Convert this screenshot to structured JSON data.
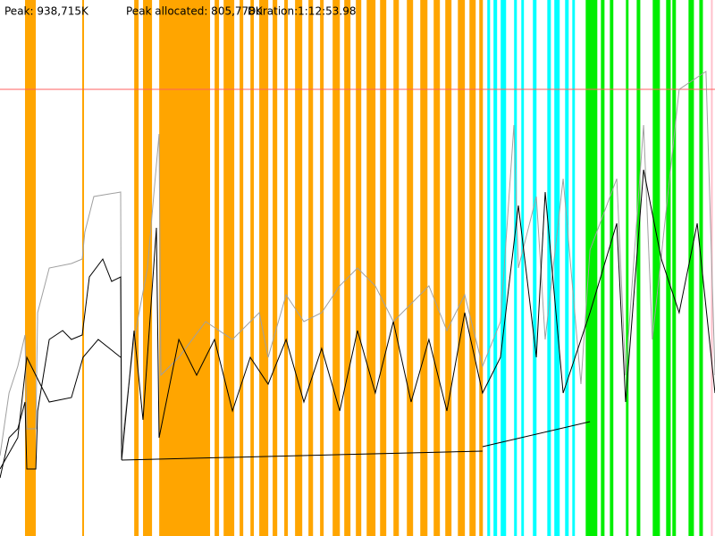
{
  "chart_data": {
    "type": "line",
    "header": [
      "Peak: 938,715K",
      "Peak allocated: 805,778K",
      "Duration:1:12:53.98"
    ],
    "xlim": [
      0,
      4374
    ],
    "ylim": [
      0,
      1083000
    ],
    "limit": {
      "value": 902500,
      "color": "#ff6060"
    },
    "bands": [
      {
        "color": "#ffa500",
        "ranges": [
          [
            153,
            219
          ],
          [
            503,
            514
          ],
          [
            821,
            848
          ],
          [
            875,
            930
          ],
          [
            974,
            1285
          ],
          [
            1313,
            1340
          ],
          [
            1368,
            1433
          ],
          [
            1466,
            1488
          ],
          [
            1532,
            1553
          ],
          [
            1586,
            1641
          ],
          [
            1668,
            1696
          ],
          [
            1739,
            1761
          ],
          [
            1805,
            1849
          ],
          [
            1887,
            1915
          ],
          [
            1958,
            1980
          ],
          [
            2035,
            2079
          ],
          [
            2106,
            2144
          ],
          [
            2177,
            2210
          ],
          [
            2243,
            2297
          ],
          [
            2325,
            2363
          ],
          [
            2407,
            2440
          ],
          [
            2489,
            2527
          ],
          [
            2571,
            2615
          ],
          [
            2653,
            2691
          ],
          [
            2724,
            2762
          ],
          [
            2801,
            2844
          ],
          [
            2872,
            2910
          ],
          [
            2932,
            2954
          ]
        ]
      },
      {
        "color": "#00ffff",
        "ranges": [
          [
            2981,
            2998
          ],
          [
            3019,
            3041
          ],
          [
            3063,
            3096
          ],
          [
            3145,
            3162
          ],
          [
            3189,
            3205
          ],
          [
            3260,
            3282
          ],
          [
            3348,
            3370
          ],
          [
            3391,
            3424
          ],
          [
            3457,
            3479
          ],
          [
            3501,
            3517
          ]
        ]
      },
      {
        "color": "#00ee00",
        "ranges": [
          [
            3583,
            3654
          ],
          [
            3676,
            3698
          ],
          [
            3731,
            3752
          ],
          [
            3829,
            3845
          ],
          [
            3895,
            3917
          ],
          [
            3993,
            4037
          ],
          [
            4075,
            4103
          ],
          [
            4113,
            4135
          ],
          [
            4212,
            4245
          ],
          [
            4278,
            4300
          ]
        ]
      },
      {
        "color": "#ffc0cb",
        "ranges": [
          [
            4349,
            4360
          ]
        ]
      }
    ],
    "series": [
      {
        "color": "#a0a0a0",
        "x": [
          0,
          55,
          109,
          153,
          164,
          219,
          230,
          301,
          437,
          503,
          519,
          574,
          738,
          744,
          820,
          902,
          940,
          973,
          984,
          1094,
          1258,
          1422,
          1586,
          1640,
          1750,
          1859,
          1968,
          2078,
          2187,
          2296,
          2406,
          2515,
          2624,
          2734,
          2843,
          2952,
          3062,
          3144,
          3171,
          3281,
          3335,
          3445,
          3554,
          3609,
          3773,
          3827,
          3937,
          3991,
          4155,
          4319,
          4374
        ],
        "values": [
          162450,
          288800,
          342950,
          406125,
          216600,
          216600,
          451250,
          541500,
          550525,
          559550,
          613700,
          685900,
          694925,
          180500,
          397100,
          541500,
          685900,
          812250,
          324900,
          361000,
          433200,
          397100,
          451250,
          361000,
          487350,
          433200,
          451250,
          505400,
          541500,
          505400,
          433200,
          469300,
          505400,
          415150,
          487350,
          342950,
          433200,
          830300,
          541500,
          685900,
          397100,
          722000,
          306850,
          577600,
          722000,
          324900,
          830300,
          397100,
          902500,
          938600,
          324900
        ]
      },
      {
        "color": "#000000",
        "x": [
          0,
          55,
          109,
          153,
          164,
          219,
          230,
          301,
          383,
          437,
          503,
          547,
          629,
          683,
          738,
          744,
          820,
          875,
          957,
          973,
          1094,
          1203,
          1312,
          1422,
          1531,
          1640,
          1750,
          1859,
          1968,
          2078,
          2187,
          2296,
          2406,
          2515,
          2624,
          2734,
          2843,
          2952,
          3062,
          3171,
          3281,
          3335,
          3445,
          3609,
          3773,
          3827,
          3937,
          4046,
          4155,
          4265,
          4374
        ],
        "values": [
          117325,
          198550,
          216600,
          270750,
          135375,
          135375,
          252700,
          397100,
          415150,
          397100,
          406125,
          523450,
          559550,
          514425,
          523450,
          153425,
          415150,
          234650,
          622725,
          198550,
          397100,
          324900,
          397100,
          252700,
          361000,
          306850,
          397100,
          270750,
          379050,
          252700,
          415150,
          288800,
          433200,
          270750,
          397100,
          252700,
          451250,
          288800,
          361000,
          667850,
          361000,
          694925,
          288800,
          451250,
          631750,
          270750,
          740050,
          559550,
          451250,
          631750,
          288800
        ]
      },
      {
        "color": "#000000",
        "x": [
          0,
          109,
          164,
          301,
          437,
          508,
          601,
          738
        ],
        "values": [
          135375,
          198550,
          361000,
          270750,
          279775,
          361000,
          397100,
          361000
        ]
      },
      {
        "color": "#000000",
        "x": [
          744,
          2952
        ],
        "values": [
          153425,
          171475
        ]
      },
      {
        "color": "#000000",
        "x": [
          2952,
          3609
        ],
        "values": [
          180500,
          231040
        ]
      }
    ]
  }
}
